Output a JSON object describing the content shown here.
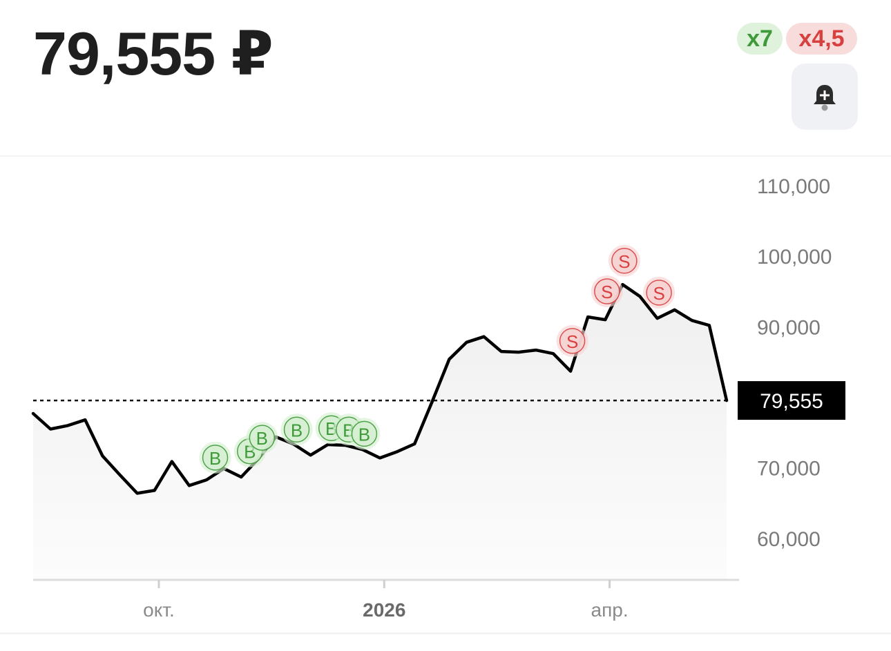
{
  "header": {
    "price": "79,555 ₽",
    "buy_count_badge": "x7",
    "sell_count_badge": "x4,5",
    "alert_icon": "bell-plus-icon"
  },
  "colors": {
    "line": "#000000",
    "buy_marker": "#3f9a3a",
    "buy_marker_fill": "#d6f0d2",
    "sell_marker": "#d8403f",
    "sell_marker_fill": "#f7d3d3",
    "current_label_bg": "#000000"
  },
  "chart_data": {
    "type": "line",
    "ylim": [
      55000,
      110000
    ],
    "yticks": [
      110000,
      100000,
      90000,
      70000,
      60000
    ],
    "ytick_labels": [
      "110,000",
      "100,000",
      "90,000",
      "70,000",
      "60,000"
    ],
    "xtick_labels": [
      "окт.",
      "2026",
      "апр."
    ],
    "xtick_positions": [
      7.25,
      20.25,
      33.25
    ],
    "current_value": 79555,
    "current_value_label": "79,555",
    "series": [
      {
        "values": [
          77700,
          75500,
          76000,
          76800,
          71700,
          69000,
          66400,
          66800,
          70900,
          67500,
          68300,
          69900,
          68700,
          71300,
          74400,
          73400,
          71800,
          73300,
          73200,
          72600,
          71400,
          72300,
          73400,
          79300,
          85400,
          87800,
          88600,
          86500,
          86400,
          86700,
          86200,
          83700,
          91400,
          91000,
          96000,
          94300,
          91200,
          92400,
          90900,
          90200,
          79555
        ]
      }
    ],
    "buy_markers": [
      {
        "label": "B",
        "index": 10.5
      },
      {
        "label": "B",
        "index": 12.5
      },
      {
        "label": "B",
        "index": 13.2
      },
      {
        "label": "B",
        "index": 15.2
      },
      {
        "label": "B",
        "index": 17.2
      },
      {
        "label": "B",
        "index": 18.2
      },
      {
        "label": "B",
        "index": 19.1
      }
    ],
    "sell_markers": [
      {
        "label": "S",
        "index": 31.1
      },
      {
        "label": "S",
        "index": 33.1
      },
      {
        "label": "S",
        "index": 34.1
      },
      {
        "label": "S",
        "index": 36.1
      }
    ]
  }
}
